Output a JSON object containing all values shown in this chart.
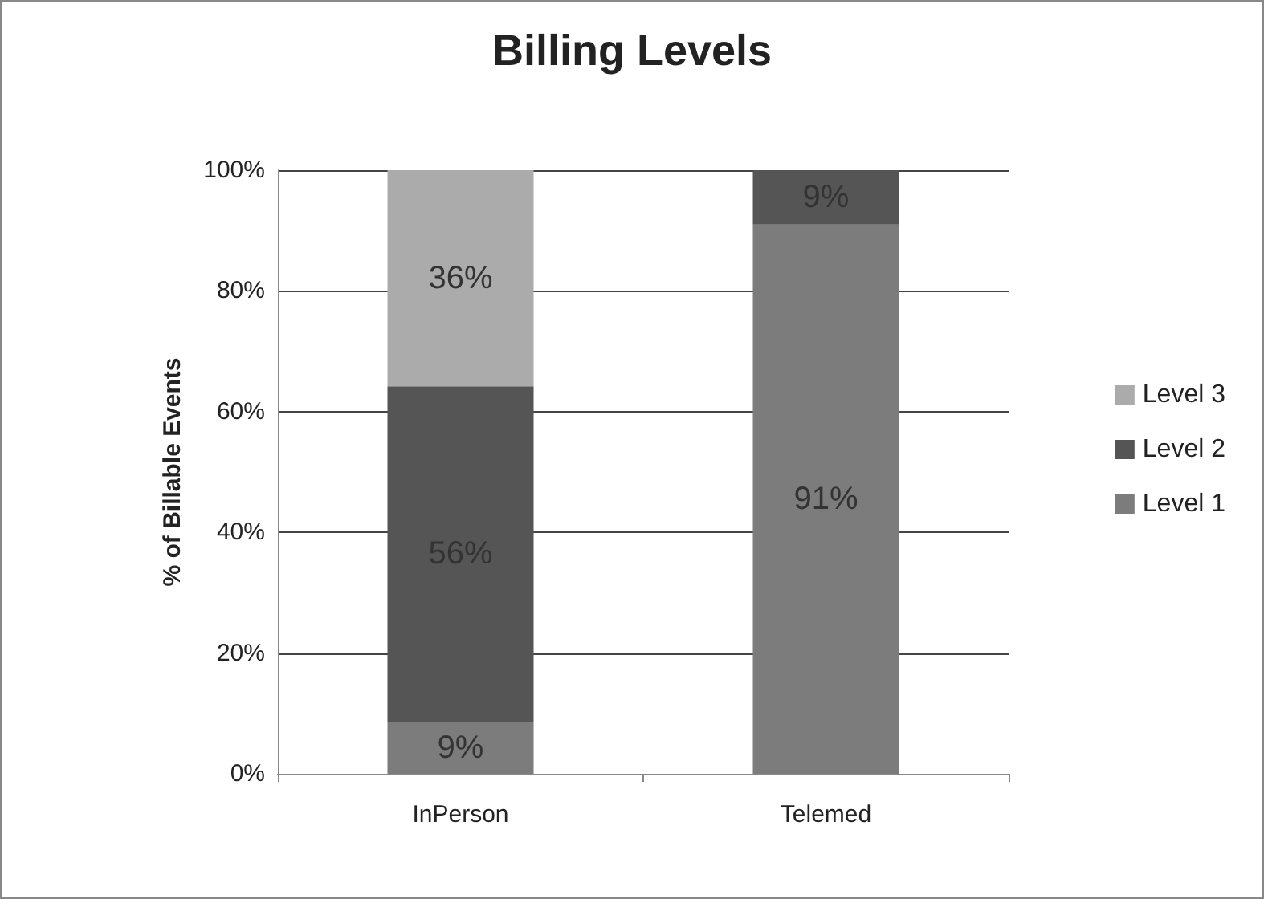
{
  "chart_data": {
    "type": "bar",
    "title": "Billing Levels",
    "ylabel": "% of Billable Events",
    "categories": [
      "InPerson",
      "Telemed"
    ],
    "stacked": true,
    "grid": "y",
    "legend": "right",
    "ylim": [
      0,
      100
    ],
    "yticks": [
      {
        "value": 0,
        "label": "0%"
      },
      {
        "value": 20,
        "label": "20%"
      },
      {
        "value": 40,
        "label": "40%"
      },
      {
        "value": 60,
        "label": "60%"
      },
      {
        "value": 80,
        "label": "80%"
      },
      {
        "value": 100,
        "label": "100%"
      }
    ],
    "series": [
      {
        "name": "Level 1",
        "color": "#7c7c7c",
        "values": [
          8.6,
          91
        ],
        "value_labels": [
          "9%",
          "91%"
        ]
      },
      {
        "name": "Level 2",
        "color": "#555555",
        "values": [
          55.6,
          9
        ],
        "value_labels": [
          "56%",
          "9%"
        ]
      },
      {
        "name": "Level 3",
        "color": "#ababab",
        "values": [
          35.8,
          null
        ],
        "value_labels": [
          "36%",
          null
        ]
      }
    ]
  }
}
